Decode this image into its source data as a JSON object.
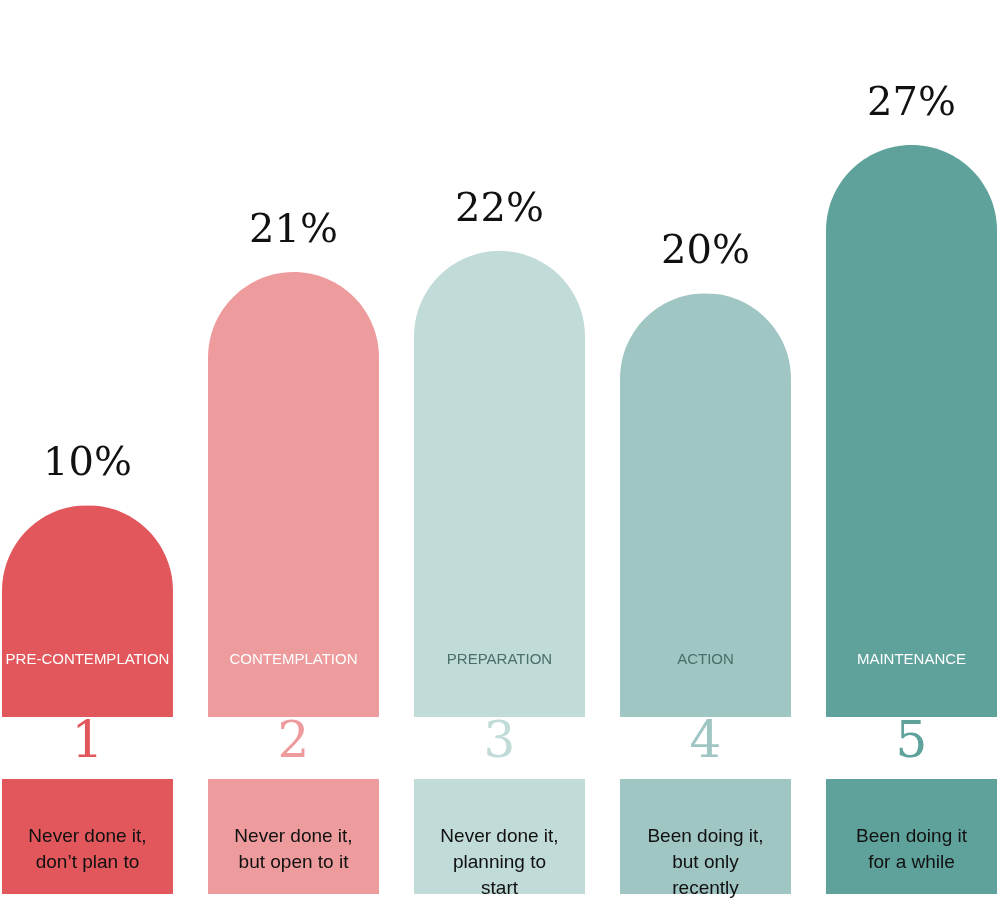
{
  "chart_data": {
    "type": "bar",
    "categories": [
      "1",
      "2",
      "3",
      "4",
      "5"
    ],
    "values": [
      10,
      21,
      22,
      20,
      27
    ],
    "colors": [
      "#e2575b",
      "#ed9b9c",
      "#c0dbd8",
      "#a0c6c3",
      "#5fa29b"
    ],
    "value_labels": [
      "10%",
      "21%",
      "22%",
      "20%",
      "27%"
    ],
    "annotations": [
      "PRE-CONTEMPLATION",
      "CONTEMPLATION",
      "PREPARATION",
      "ACTION",
      "MAINTENANCE",
      "Never done it,\ndon’t plan to",
      "Never done it,\nbut open to it",
      "Never done it,\nplanning to\nstart",
      "Been doing it,\nbut only\nrecently",
      "Been doing it\nfor a while"
    ]
  }
}
